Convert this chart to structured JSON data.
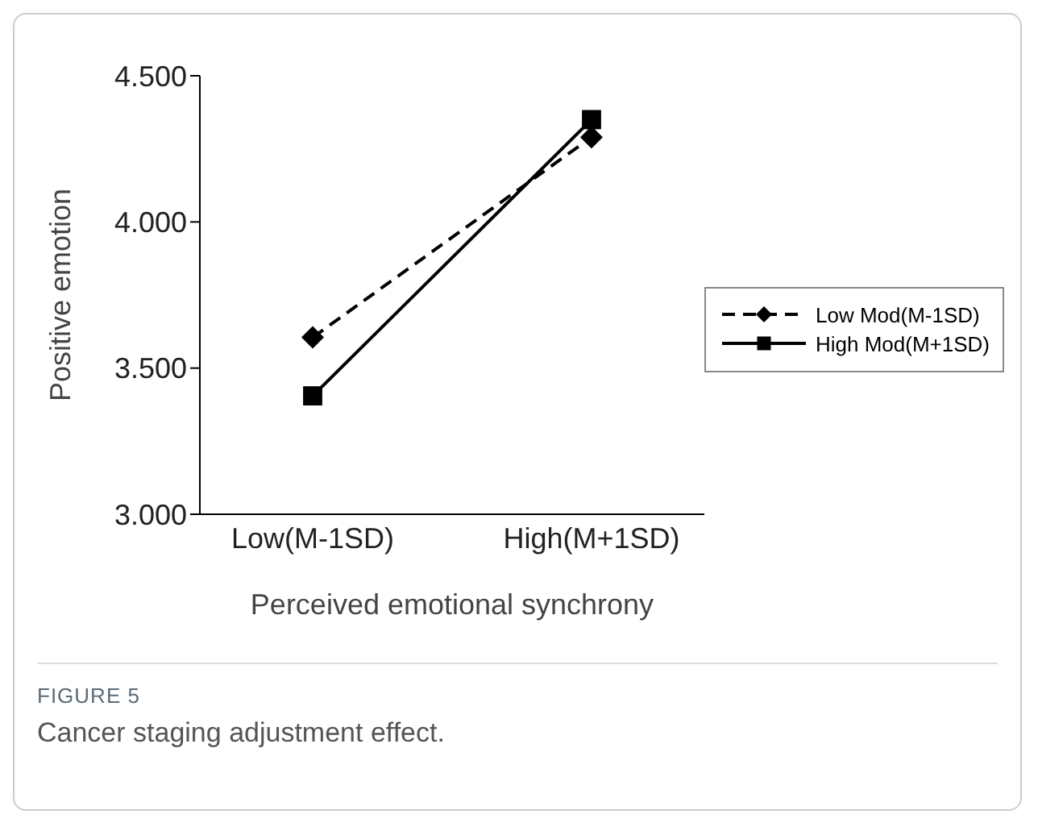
{
  "chart_data": {
    "type": "line",
    "xlabel": "Perceived emotional synchrony",
    "ylabel": "Positive emotion",
    "categories": [
      "Low(M-1SD)",
      "High(M+1SD)"
    ],
    "series": [
      {
        "name": "Low Mod(M-1SD)",
        "color": "#000000",
        "values": [
          3.605,
          4.29
        ],
        "line_style": "dashed",
        "marker": "diamond"
      },
      {
        "name": "High Mod(M+1SD)",
        "color": "#000000",
        "values": [
          3.405,
          4.35
        ],
        "line_style": "solid",
        "marker": "square"
      }
    ],
    "ylim": [
      3.0,
      4.5
    ],
    "yticks": [
      {
        "value": 3.0,
        "label": "3.000"
      },
      {
        "value": 3.5,
        "label": "3.500"
      },
      {
        "value": 4.0,
        "label": "4.000"
      },
      {
        "value": 4.5,
        "label": "4.500"
      }
    ],
    "legend": "right",
    "annotations": [
      "FIGURE 5",
      "Cancer staging adjustment effect."
    ]
  }
}
